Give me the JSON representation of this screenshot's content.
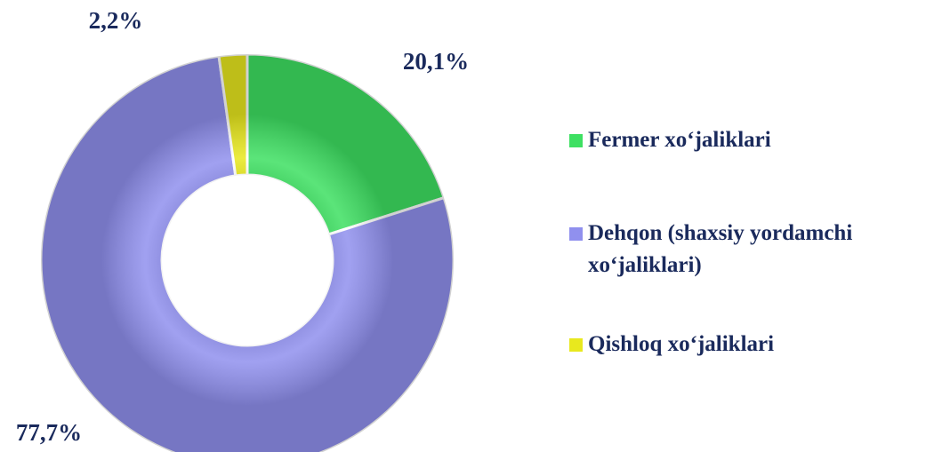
{
  "chart_data": {
    "type": "donut",
    "categories": [
      "Fermer xo‘jaliklari",
      "Dehqon (shaxsiy yordamchi xo‘jaliklari)",
      "Qishloq xo‘jaliklari"
    ],
    "values": [
      20.1,
      77.7,
      2.2
    ],
    "value_labels": [
      "20,1%",
      "77,7%",
      "2,2%"
    ],
    "colors": [
      "#3ee062",
      "#9090ee",
      "#e8e81e"
    ],
    "legend": "right"
  }
}
